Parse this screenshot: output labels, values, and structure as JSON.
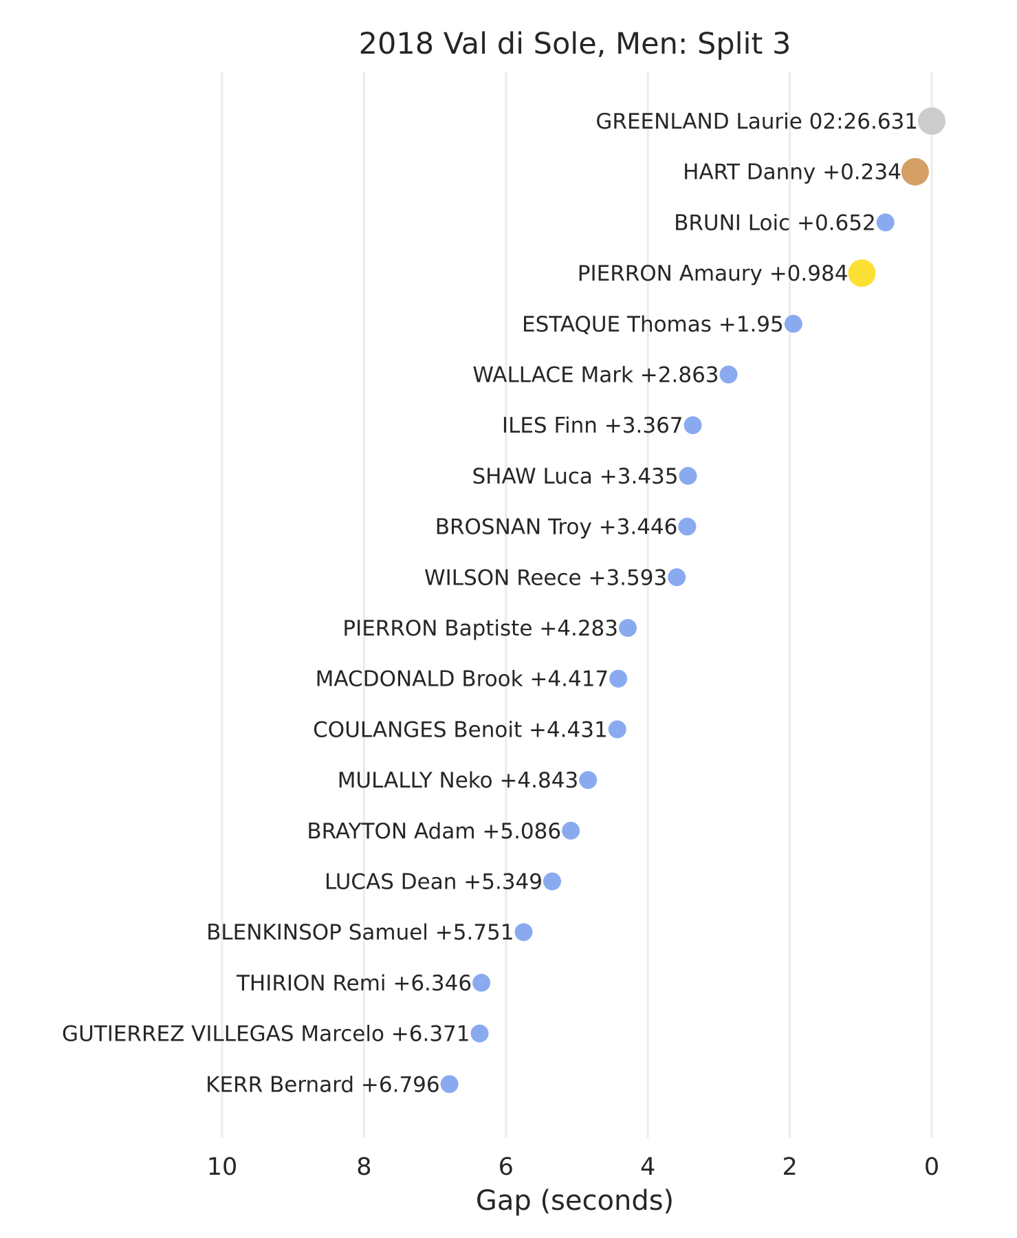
{
  "chart_data": {
    "type": "scatter",
    "title": "2018 Val di Sole, Men: Split 3",
    "xlabel": "Gap (seconds)",
    "ylabel": "",
    "xlim": [
      10,
      0
    ],
    "x_inverted": true,
    "xticks": [
      10,
      8,
      6,
      4,
      2,
      0
    ],
    "grid": "vertical",
    "legend": "none",
    "colors": {
      "default": "#8aaaf0",
      "silver": "#cccccc",
      "bronze": "#d4a066",
      "gold": "#fde034",
      "grid": "#ebebeb",
      "text": "#262626"
    },
    "points": [
      {
        "label": "GREENLAND Laurie 02:26.631",
        "x": 0,
        "color": "#cccccc",
        "size": "large"
      },
      {
        "label": "HART Danny +0.234",
        "x": 0.234,
        "color": "#d4a066",
        "size": "large"
      },
      {
        "label": "BRUNI Loic +0.652",
        "x": 0.652,
        "color": "#8aaaf0",
        "size": "small"
      },
      {
        "label": "PIERRON Amaury +0.984",
        "x": 0.984,
        "color": "#fde034",
        "size": "large"
      },
      {
        "label": "ESTAQUE Thomas +1.95",
        "x": 1.95,
        "color": "#8aaaf0",
        "size": "small"
      },
      {
        "label": "WALLACE Mark +2.863",
        "x": 2.863,
        "color": "#8aaaf0",
        "size": "small"
      },
      {
        "label": "ILES Finn +3.367",
        "x": 3.367,
        "color": "#8aaaf0",
        "size": "small"
      },
      {
        "label": "SHAW Luca +3.435",
        "x": 3.435,
        "color": "#8aaaf0",
        "size": "small"
      },
      {
        "label": "BROSNAN Troy +3.446",
        "x": 3.446,
        "color": "#8aaaf0",
        "size": "small"
      },
      {
        "label": "WILSON Reece +3.593",
        "x": 3.593,
        "color": "#8aaaf0",
        "size": "small"
      },
      {
        "label": "PIERRON Baptiste +4.283",
        "x": 4.283,
        "color": "#8aaaf0",
        "size": "small"
      },
      {
        "label": "MACDONALD Brook +4.417",
        "x": 4.417,
        "color": "#8aaaf0",
        "size": "small"
      },
      {
        "label": "COULANGES Benoit +4.431",
        "x": 4.431,
        "color": "#8aaaf0",
        "size": "small"
      },
      {
        "label": "MULALLY Neko +4.843",
        "x": 4.843,
        "color": "#8aaaf0",
        "size": "small"
      },
      {
        "label": "BRAYTON Adam +5.086",
        "x": 5.086,
        "color": "#8aaaf0",
        "size": "small"
      },
      {
        "label": "LUCAS Dean +5.349",
        "x": 5.349,
        "color": "#8aaaf0",
        "size": "small"
      },
      {
        "label": "BLENKINSOP Samuel +5.751",
        "x": 5.751,
        "color": "#8aaaf0",
        "size": "small"
      },
      {
        "label": "THIRION Remi +6.346",
        "x": 6.346,
        "color": "#8aaaf0",
        "size": "small"
      },
      {
        "label": "GUTIERREZ VILLEGAS Marcelo +6.371",
        "x": 6.371,
        "color": "#8aaaf0",
        "size": "small"
      },
      {
        "label": "KERR Bernard +6.796",
        "x": 6.796,
        "color": "#8aaaf0",
        "size": "small"
      }
    ]
  }
}
